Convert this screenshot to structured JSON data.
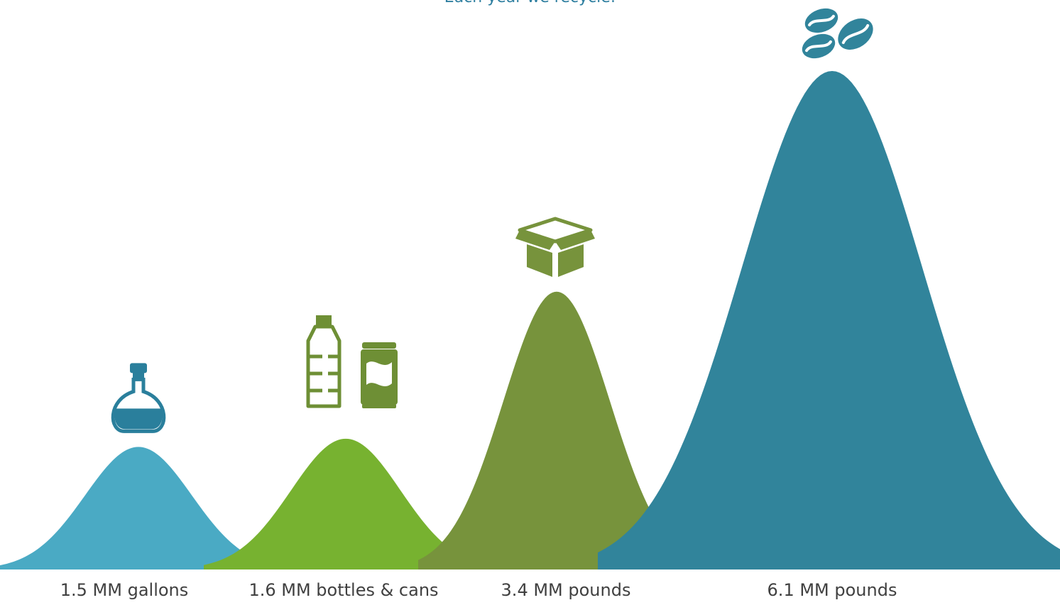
{
  "chart_data": {
    "type": "area",
    "title": "Each year we recycle:",
    "unit": "MM",
    "categories": [
      "1.5 MM gallons",
      "1.6 MM bottles & cans",
      "3.4 MM pounds",
      "6.1 MM pounds"
    ],
    "values": [
      1.5,
      1.6,
      3.4,
      6.1
    ],
    "ylim": [
      0,
      6.1
    ],
    "grid": false,
    "legend": "none",
    "colors": [
      "#4aaac4",
      "#77b230",
      "#77933c",
      "#31849b"
    ],
    "icons": [
      "oil-flask-icon",
      "bottle-and-can-icon",
      "cardboard-box-icon",
      "coffee-beans-icon"
    ]
  }
}
